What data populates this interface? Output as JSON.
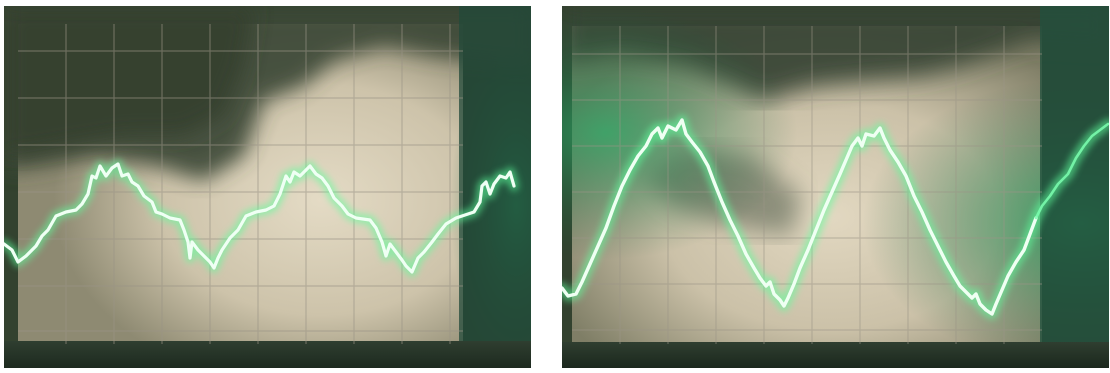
{
  "figure": {
    "photos": [
      {
        "name": "oscilloscope-photo-left",
        "description_hidden": true,
        "colors": {
          "screen": "#d9cfb8",
          "bezel": "#2d3e2e",
          "shadow": "#3d4b3a",
          "grid": "#a9a294",
          "trace": "#e8fff0",
          "glow": "#59ff9a",
          "green_haze": "#1f8f56"
        },
        "trace_shape": "distorted-sine",
        "cycles_visible": 2.6
      },
      {
        "name": "oscilloscope-photo-right",
        "description_hidden": true,
        "colors": {
          "screen": "#d6ccb4",
          "bezel": "#2b3a2c",
          "shadow": "#3a4836",
          "grid": "#aaa396",
          "trace": "#eafff1",
          "glow": "#5cff9d",
          "green_haze": "#1e8a53"
        },
        "trace_shape": "triangular-sine",
        "cycles_visible": 2.3
      }
    ]
  }
}
